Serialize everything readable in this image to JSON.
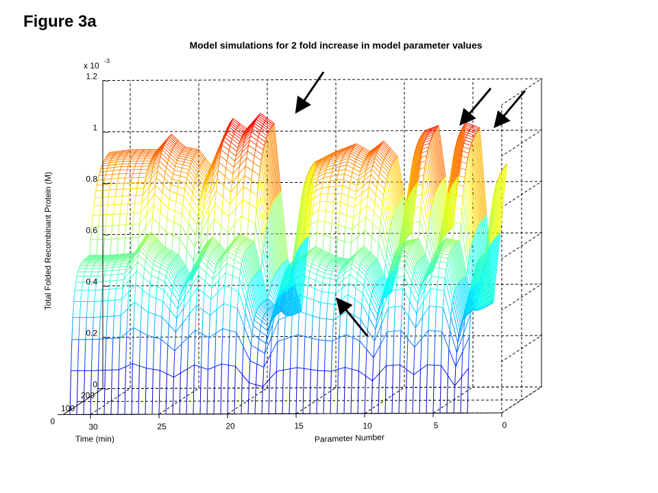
{
  "figure": {
    "label": "Figure 3a",
    "title": "Model simulations for 2 fold increase in model parameter values"
  },
  "chart_data": {
    "type": "surface",
    "zlabel": "Total Folded Recombinant Protein (M)",
    "xlabel": "Parameter Number",
    "ylabel": "Time (min)",
    "z_exponent_label": "x 10",
    "z_exponent_power": "-3",
    "zlim": [
      0,
      1.2
    ],
    "z_ticks": [
      "0",
      "0.2",
      "0.4",
      "0.6",
      "0.8",
      "1",
      "1.2"
    ],
    "z_tick_values": [
      0,
      0.2,
      0.4,
      0.6,
      0.8,
      1.0,
      1.2
    ],
    "x_ticks": [
      "30",
      "25",
      "20",
      "15",
      "10",
      "5",
      "0"
    ],
    "x_tick_values": [
      30,
      25,
      20,
      15,
      10,
      5,
      0
    ],
    "xlim": [
      0,
      32
    ],
    "y_ticks": [
      "0",
      "100",
      "200"
    ],
    "y_tick_values": [
      0,
      100,
      200
    ],
    "ylim": [
      0,
      200
    ],
    "grid": true,
    "colormap": "jet",
    "front_profile_t200": [
      {
        "x": 31.5,
        "z": 0.92
      },
      {
        "x": 30,
        "z": 0.93
      },
      {
        "x": 28,
        "z": 0.93
      },
      {
        "x": 27,
        "z": 0.99
      },
      {
        "x": 26,
        "z": 0.94
      },
      {
        "x": 25,
        "z": 0.93
      },
      {
        "x": 24,
        "z": 0.86
      },
      {
        "x": 22.5,
        "z": 1.05
      },
      {
        "x": 21.5,
        "z": 1.01
      },
      {
        "x": 20.5,
        "z": 1.07
      },
      {
        "x": 19.5,
        "z": 1.03
      },
      {
        "x": 18.5,
        "z": 0.5
      },
      {
        "x": 17.5,
        "z": 0.3
      },
      {
        "x": 16.5,
        "z": 0.88
      },
      {
        "x": 15,
        "z": 0.92
      },
      {
        "x": 13.5,
        "z": 0.95
      },
      {
        "x": 12.5,
        "z": 0.92
      },
      {
        "x": 11.5,
        "z": 0.96
      },
      {
        "x": 10.5,
        "z": 0.9
      },
      {
        "x": 9.5,
        "z": 0.6
      },
      {
        "x": 8.5,
        "z": 1.0
      },
      {
        "x": 7.5,
        "z": 1.02
      },
      {
        "x": 6.5,
        "z": 0.62
      },
      {
        "x": 5.5,
        "z": 1.03
      },
      {
        "x": 4.5,
        "z": 1.01
      },
      {
        "x": 3.5,
        "z": 0.33
      },
      {
        "x": 2.5,
        "z": 0.87
      }
    ],
    "mid_profile_t100": [
      {
        "x": 31.5,
        "z": 0.57
      },
      {
        "x": 30,
        "z": 0.57
      },
      {
        "x": 28,
        "z": 0.58
      },
      {
        "x": 27,
        "z": 0.66
      },
      {
        "x": 26,
        "z": 0.6
      },
      {
        "x": 25,
        "z": 0.57
      },
      {
        "x": 24,
        "z": 0.48
      },
      {
        "x": 22.5,
        "z": 0.64
      },
      {
        "x": 21.5,
        "z": 0.58
      },
      {
        "x": 20.5,
        "z": 0.65
      },
      {
        "x": 19.5,
        "z": 0.62
      },
      {
        "x": 18.5,
        "z": 0.4
      },
      {
        "x": 17.5,
        "z": 0.35
      },
      {
        "x": 16.5,
        "z": 0.55
      },
      {
        "x": 15,
        "z": 0.6
      },
      {
        "x": 13.5,
        "z": 0.56
      },
      {
        "x": 12.5,
        "z": 0.55
      },
      {
        "x": 11.5,
        "z": 0.6
      },
      {
        "x": 10.5,
        "z": 0.55
      },
      {
        "x": 9.5,
        "z": 0.42
      },
      {
        "x": 8.5,
        "z": 0.62
      },
      {
        "x": 7.5,
        "z": 0.63
      },
      {
        "x": 6.5,
        "z": 0.5
      },
      {
        "x": 5.5,
        "z": 0.63
      },
      {
        "x": 4.5,
        "z": 0.62
      },
      {
        "x": 3.5,
        "z": 0.35
      },
      {
        "x": 2.5,
        "z": 0.58
      }
    ],
    "annotations": [
      {
        "type": "arrow",
        "points_to_parameter": 18,
        "z": 1.07
      },
      {
        "type": "arrow",
        "points_to_parameter": 6,
        "z": 1.02
      },
      {
        "type": "arrow",
        "points_to_parameter": 3.5,
        "z": 1.01
      },
      {
        "type": "arrow",
        "points_to_parameter": 15,
        "z": 0.35
      }
    ]
  }
}
